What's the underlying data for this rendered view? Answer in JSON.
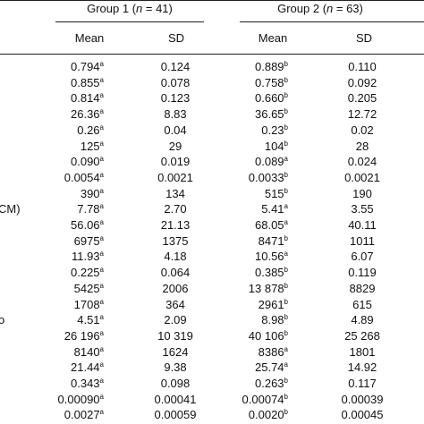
{
  "header": {
    "groups": [
      {
        "parts": [
          "Group 1 (",
          "n",
          " = 41)"
        ]
      },
      {
        "parts": [
          "Group 2 (",
          "n",
          " = 63)"
        ]
      }
    ],
    "columns": [
      "Mean",
      "SD",
      "Mean",
      "SD"
    ]
  },
  "table": {
    "rows": [
      {
        "cells": [
          {
            "value": "0.794",
            "sup": "a"
          },
          "0.124",
          {
            "value": "0.889",
            "sup": "b"
          },
          "0.110"
        ]
      },
      {
        "cells": [
          {
            "value": "0.855",
            "sup": "a"
          },
          "0.078",
          {
            "value": "0.758",
            "sup": "b"
          },
          "0.092"
        ]
      },
      {
        "cells": [
          {
            "value": "0.814",
            "sup": "a"
          },
          "0.123",
          {
            "value": "0.660",
            "sup": "b"
          },
          "0.205"
        ]
      },
      {
        "cells": [
          {
            "value": "26.36",
            "sup": "a"
          },
          "8.83",
          {
            "value": "36.65",
            "sup": "b"
          },
          "12.72"
        ]
      },
      {
        "cells": [
          {
            "value": "0.26",
            "sup": "a"
          },
          "0.04",
          {
            "value": "0.23",
            "sup": "b"
          },
          "0.02"
        ]
      },
      {
        "cells": [
          {
            "value": "125",
            "sup": "a"
          },
          "29",
          {
            "value": "104",
            "sup": "b"
          },
          "28"
        ]
      },
      {
        "cells": [
          {
            "value": "0.090",
            "sup": "a"
          },
          "0.019",
          {
            "value": "0.089",
            "sup": "a"
          },
          "0.024"
        ]
      },
      {
        "cells": [
          {
            "value": "0.0054",
            "sup": "a"
          },
          "0.0021",
          {
            "value": "0.0033",
            "sup": "b"
          },
          "0.0021"
        ]
      },
      {
        "cells": [
          {
            "value": "390",
            "sup": "a"
          },
          "134",
          {
            "value": "515",
            "sup": "b"
          },
          "190"
        ]
      },
      {
        "label": "CM)",
        "cells": [
          {
            "value": "7.78",
            "sup": "a"
          },
          "2.70",
          {
            "value": "5.41",
            "sup": "a"
          },
          "3.55"
        ]
      },
      {
        "cells": [
          {
            "value": "56.06",
            "sup": "a"
          },
          "21.13",
          {
            "value": "68.05",
            "sup": "a"
          },
          "40.11"
        ]
      },
      {
        "cells": [
          {
            "value": "6975",
            "sup": "a"
          },
          "1375",
          {
            "value": "8471",
            "sup": "b"
          },
          "1011"
        ]
      },
      {
        "cells": [
          {
            "value": "11.93",
            "sup": "a"
          },
          "4.18",
          {
            "value": "10.56",
            "sup": "a"
          },
          "6.07"
        ]
      },
      {
        "cells": [
          {
            "value": "0.225",
            "sup": "a"
          },
          "0.064",
          {
            "value": "0.385",
            "sup": "b"
          },
          "0.119"
        ]
      },
      {
        "cells": [
          {
            "value": "5425",
            "sup": "a"
          },
          "2006",
          {
            "value": "13 878",
            "sup": "b"
          },
          "8829"
        ]
      },
      {
        "cells": [
          {
            "value": "1708",
            "sup": "a"
          },
          "364",
          {
            "value": "2961",
            "sup": "b"
          },
          "615"
        ]
      },
      {
        "label": "o",
        "cells": [
          {
            "value": "4.51",
            "sup": "a"
          },
          "2.09",
          {
            "value": "8.98",
            "sup": "b"
          },
          "4.89"
        ]
      },
      {
        "cells": [
          {
            "value": "26 196",
            "sup": "a"
          },
          "10 319",
          {
            "value": "40 106",
            "sup": "b"
          },
          "25 268"
        ]
      },
      {
        "cells": [
          {
            "value": "8140",
            "sup": "a"
          },
          "1624",
          {
            "value": "8386",
            "sup": "a"
          },
          "1801"
        ]
      },
      {
        "cells": [
          {
            "value": "21.44",
            "sup": "a"
          },
          "9.38",
          {
            "value": "25.74",
            "sup": "a"
          },
          "14.92"
        ]
      },
      {
        "cells": [
          {
            "value": "0.343",
            "sup": "a"
          },
          "0.098",
          {
            "value": "0.263",
            "sup": "b"
          },
          "0.117"
        ]
      },
      {
        "cells": [
          {
            "value": "0.00090",
            "sup": "a"
          },
          "0.00041",
          {
            "value": "0.00074",
            "sup": "b"
          },
          "0.00039"
        ]
      },
      {
        "cells": [
          {
            "value": "0.0027",
            "sup": "a"
          },
          "0.00059",
          {
            "value": "0.0020",
            "sup": "b"
          },
          "0.00045"
        ]
      }
    ]
  }
}
